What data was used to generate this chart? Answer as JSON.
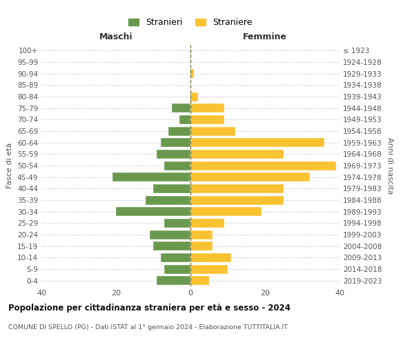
{
  "age_groups": [
    "0-4",
    "5-9",
    "10-14",
    "15-19",
    "20-24",
    "25-29",
    "30-34",
    "35-39",
    "40-44",
    "45-49",
    "50-54",
    "55-59",
    "60-64",
    "65-69",
    "70-74",
    "75-79",
    "80-84",
    "85-89",
    "90-94",
    "95-99",
    "100+"
  ],
  "birth_years": [
    "2019-2023",
    "2014-2018",
    "2009-2013",
    "2004-2008",
    "1999-2003",
    "1994-1998",
    "1989-1993",
    "1984-1988",
    "1979-1983",
    "1974-1978",
    "1969-1973",
    "1964-1968",
    "1959-1963",
    "1954-1958",
    "1949-1953",
    "1944-1948",
    "1939-1943",
    "1934-1938",
    "1929-1933",
    "1924-1928",
    "≤ 1923"
  ],
  "males": [
    9,
    7,
    8,
    10,
    11,
    7,
    20,
    12,
    10,
    21,
    7,
    9,
    8,
    6,
    3,
    5,
    0,
    0,
    0,
    0,
    0
  ],
  "females": [
    5,
    10,
    11,
    6,
    6,
    9,
    19,
    25,
    25,
    32,
    39,
    25,
    36,
    12,
    9,
    9,
    2,
    0,
    1,
    0,
    0
  ],
  "male_color": "#6a994e",
  "female_color": "#f9c231",
  "background_color": "#ffffff",
  "grid_color": "#d0d0d0",
  "title": "Popolazione per cittadinanza straniera per età e sesso - 2024",
  "subtitle": "COMUNE DI SPELLO (PG) - Dati ISTAT al 1° gennaio 2024 - Elaborazione TUTTITALIA.IT",
  "xlabel_left": "Maschi",
  "xlabel_right": "Femmine",
  "ylabel_left": "Fasce di età",
  "ylabel_right": "Anni di nascita",
  "legend_male": "Stranieri",
  "legend_female": "Straniere",
  "xlim": 40
}
